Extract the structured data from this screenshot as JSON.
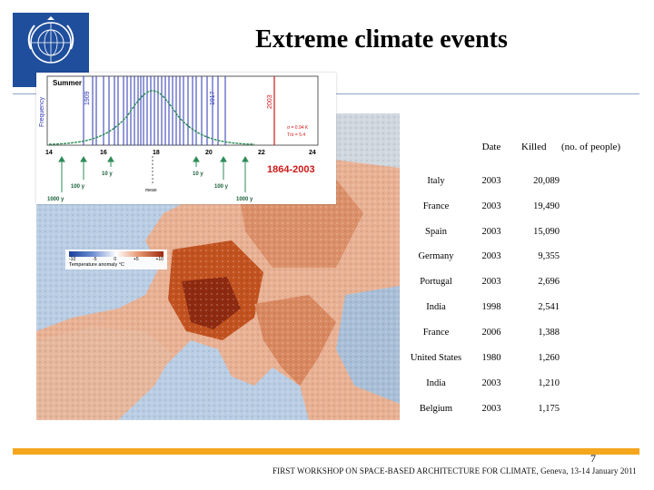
{
  "slide": {
    "title": "Extreme climate events",
    "page_number": "7",
    "footer": "FIRST WORKSHOP ON SPACE-BASED ARCHITECTURE FOR CLIMATE, Geneva, 13-14 January 2011"
  },
  "inset": {
    "panel_label": "Summer",
    "ylabel": "Frequency",
    "years": [
      "1909",
      "1917",
      "2003"
    ],
    "ticks": [
      "14",
      "16",
      "18",
      "18",
      "20",
      "22",
      "24"
    ],
    "sigma": "σ = 0.94 K",
    "t_over_sigma": "T/σ = 5.4",
    "return_labels": [
      "1000 y",
      "100 y",
      "10 y",
      "10 y",
      "100 y",
      "1000 y"
    ],
    "mean_label": "mean",
    "period": "1864-2003"
  },
  "map": {
    "legend_title": "Temperature anomaly °C",
    "legend_ticks": [
      "-10",
      "-5",
      "0",
      "+5",
      "+10"
    ]
  },
  "table": {
    "headers": {
      "date": "Date",
      "killed": "Killed",
      "note": "(no. of people)"
    },
    "rows": [
      {
        "country": "Italy",
        "date": "2003",
        "killed": "20,089"
      },
      {
        "country": "France",
        "date": "2003",
        "killed": "19,490"
      },
      {
        "country": "Spain",
        "date": "2003",
        "killed": "15,090"
      },
      {
        "country": "Germany",
        "date": "2003",
        "killed": "9,355"
      },
      {
        "country": "Portugal",
        "date": "2003",
        "killed": "2,696"
      },
      {
        "country": "India",
        "date": "1998",
        "killed": "2,541"
      },
      {
        "country": "France",
        "date": "2006",
        "killed": "1,388"
      },
      {
        "country": "United States",
        "date": "1980",
        "killed": "1,260"
      },
      {
        "country": "India",
        "date": "2003",
        "killed": "1,210"
      },
      {
        "country": "Belgium",
        "date": "2003",
        "killed": "1,175"
      }
    ]
  }
}
